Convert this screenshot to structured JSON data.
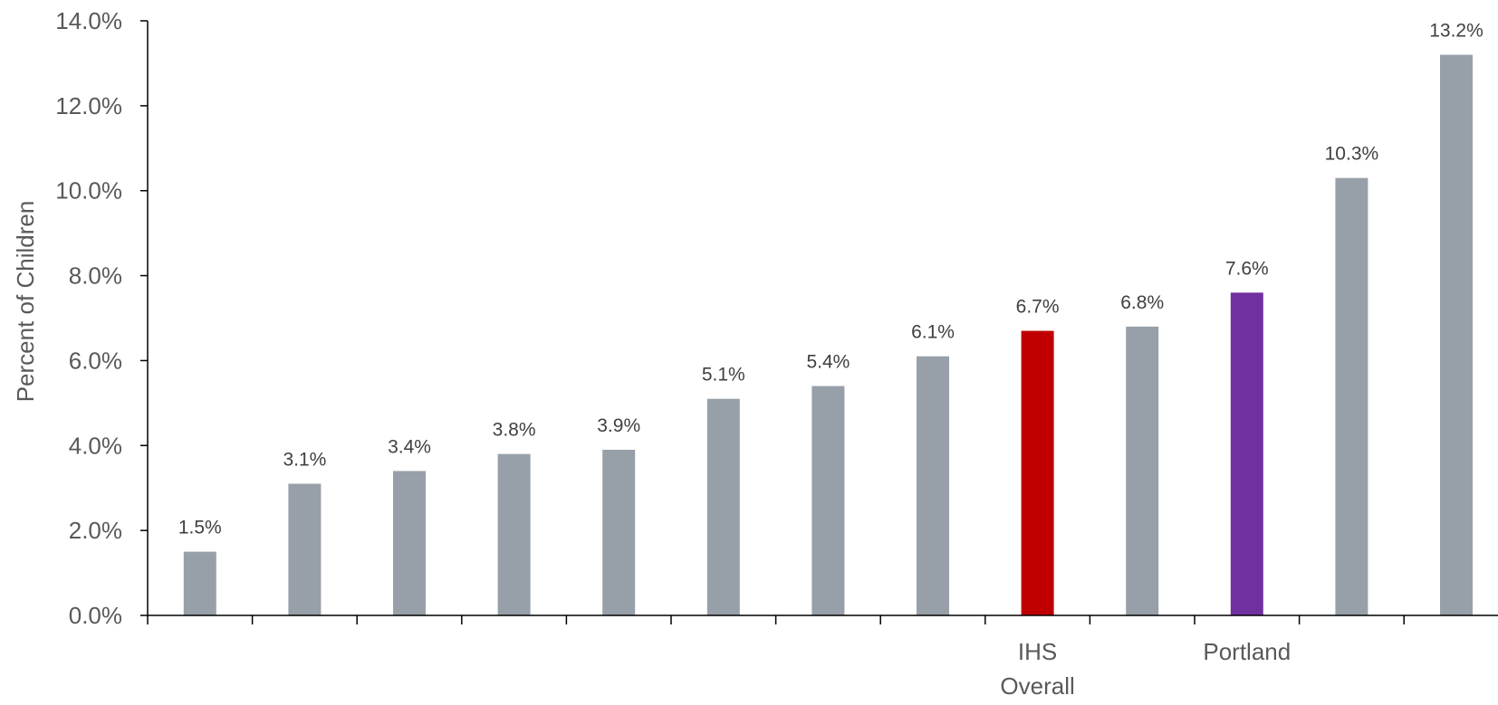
{
  "chart_data": {
    "type": "bar",
    "title": "",
    "xlabel": "",
    "ylabel": "Percent of Children",
    "ylim": [
      0,
      14
    ],
    "yticks": [
      0,
      2,
      4,
      6,
      8,
      10,
      12,
      14
    ],
    "ytick_labels": [
      "0.0%",
      "2.0%",
      "4.0%",
      "6.0%",
      "8.0%",
      "10.0%",
      "12.0%",
      "14.0%"
    ],
    "grid": false,
    "legend": "none",
    "categories": [
      "",
      "",
      "",
      "",
      "",
      "",
      "",
      "",
      "IHS Overall",
      "",
      "Portland",
      "",
      ""
    ],
    "values": [
      1.5,
      3.1,
      3.4,
      3.8,
      3.9,
      5.1,
      5.4,
      6.1,
      6.7,
      6.8,
      7.6,
      10.3,
      13.2
    ],
    "data_labels": [
      "1.5%",
      "3.1%",
      "3.4%",
      "3.8%",
      "3.9%",
      "5.1%",
      "5.4%",
      "6.1%",
      "6.7%",
      "6.8%",
      "7.6%",
      "10.3%",
      "13.2%"
    ],
    "highlight": {
      "IHS Overall": "#c00000",
      "Portland": "#7030a0"
    },
    "colors": {
      "default_bar": "#97a0a8",
      "axis": "#000000",
      "tick_text": "#595959",
      "label_text": "#404040"
    }
  }
}
